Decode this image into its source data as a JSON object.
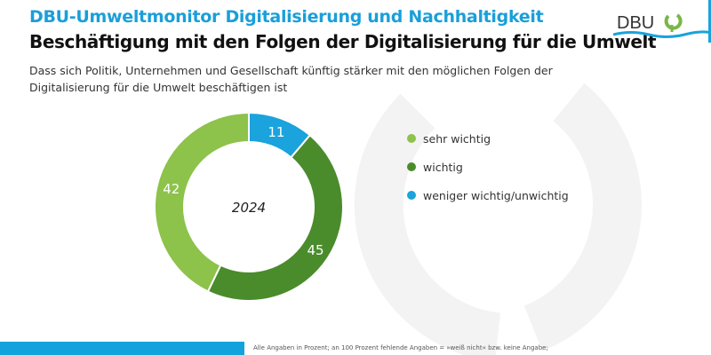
{
  "header": {
    "title": "DBU-Umweltmonitor Digitalisierung und Nachhaltigkeit",
    "subtitle": "Beschäftigung mit den Folgen der Digitalisierung für die Umwelt",
    "question": "Dass sich Politik, Unternehmen und Gesellschaft künftig stärker mit den möglichen Folgen der Digitalisierung für die Umwelt beschäftigen ist"
  },
  "logo": {
    "text": "DBU"
  },
  "footer": {
    "note": "Alle Angaben in Prozent; an 100 Prozent fehlende Angaben = »weiß nicht« bzw. keine Angabe;"
  },
  "chart_data": {
    "type": "pie",
    "variant": "donut",
    "center_label": "2024",
    "start": "top",
    "direction": "clockwise",
    "slices": [
      {
        "name": "weniger wichtig/unwichtig",
        "value": 11,
        "color": "#1aa3dc"
      },
      {
        "name": "wichtig",
        "value": 45,
        "color": "#4a8c2c"
      },
      {
        "name": "sehr wichtig",
        "value": 42,
        "color": "#8dc24b"
      }
    ],
    "legend": [
      "sehr wichtig",
      "wichtig",
      "weniger wichtig/unwichtig"
    ],
    "legend_colors": [
      "#8dc24b",
      "#4a8c2c",
      "#1aa3dc"
    ],
    "legend_placement": "right"
  }
}
